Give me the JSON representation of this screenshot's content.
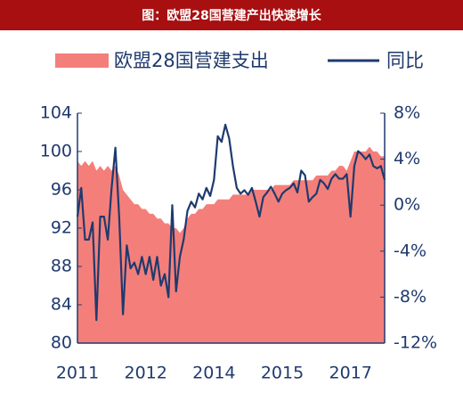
{
  "chart_data": {
    "type": "area-line",
    "title": "图：欧盟28国营建产出快速增长",
    "categories": [
      "2011",
      null,
      null,
      null,
      null,
      null,
      null,
      null,
      null,
      null,
      null,
      null,
      null,
      null,
      null,
      null,
      null,
      null,
      "2012",
      null,
      null,
      null,
      null,
      null,
      null,
      null,
      null,
      null,
      null,
      null,
      null,
      null,
      null,
      null,
      null,
      null,
      "2014",
      null,
      null,
      null,
      null,
      null,
      null,
      null,
      null,
      null,
      null,
      null,
      null,
      null,
      null,
      null,
      null,
      null,
      "2015",
      null,
      null,
      null,
      null,
      null,
      null,
      null,
      null,
      null,
      null,
      null,
      null,
      null,
      null,
      null,
      null,
      null,
      "2017",
      null,
      null,
      null,
      null,
      null,
      null,
      null,
      null,
      null
    ],
    "series": [
      {
        "name": "欧盟28国营建支出",
        "color": "#f47f7a",
        "kind": "area",
        "values": [
          99,
          98.5,
          99,
          98.5,
          99,
          98,
          98.5,
          98,
          98.5,
          98,
          98.5,
          97.5,
          96,
          95.5,
          95,
          94.5,
          94.5,
          94,
          94,
          93.5,
          93.5,
          93,
          93,
          92.5,
          92.5,
          92,
          92,
          91.5,
          92,
          93,
          93.5,
          93.5,
          94,
          94,
          94.5,
          94.5,
          94.5,
          95,
          95,
          95,
          95,
          95.5,
          95.5,
          95.5,
          95.5,
          95.5,
          96,
          96,
          96,
          96,
          96,
          96,
          96.5,
          96.5,
          96.5,
          96.5,
          96.5,
          97,
          97,
          97,
          97,
          97,
          97,
          97.5,
          97.5,
          97.5,
          97.5,
          98,
          98,
          98.5,
          98.5,
          98,
          99,
          100,
          100,
          100,
          100,
          100.5,
          100,
          100,
          99.5,
          99.5
        ]
      },
      {
        "name": "同比",
        "color": "#1f3a6e",
        "kind": "line",
        "axis": "y2",
        "values": [
          -1,
          1.5,
          -3,
          -3,
          -1.5,
          -10,
          -1,
          -1,
          -3,
          1.5,
          5,
          -1,
          -9.5,
          -3.5,
          -5.5,
          -5,
          -6,
          -4.5,
          -6,
          -4.5,
          -6.5,
          -4.5,
          -7,
          -6,
          -8,
          0,
          -7.5,
          -4.5,
          -3,
          -0.5,
          0.3,
          -0.2,
          1,
          0.5,
          1.5,
          0.8,
          2.2,
          6,
          5.5,
          7,
          5.8,
          3.4,
          1.5,
          1,
          1.3,
          0.9,
          1.5,
          0.3,
          -1,
          0.7,
          1.1,
          1.6,
          1,
          0.3,
          1,
          1.3,
          1.5,
          1.9,
          1.1,
          3,
          2.6,
          0.3,
          0.7,
          1,
          2.2,
          1.9,
          1.4,
          2.3,
          2.7,
          2.3,
          2.3,
          2.7,
          -1,
          3.4,
          4.7,
          4.4,
          4,
          4.4,
          3.4,
          3.2,
          3.4,
          2.2
        ]
      }
    ],
    "ylim": [
      80,
      104
    ],
    "yticks": [
      80,
      84,
      88,
      92,
      96,
      100,
      104
    ],
    "y2lim": [
      -12,
      8
    ],
    "y2ticks": [
      {
        "value": -12,
        "label": "-12%"
      },
      {
        "value": -8,
        "label": "-8%"
      },
      {
        "value": -4,
        "label": "-4%"
      },
      {
        "value": 0,
        "label": "0%"
      },
      {
        "value": 4,
        "label": "4%"
      },
      {
        "value": 8,
        "label": "8%"
      }
    ]
  }
}
